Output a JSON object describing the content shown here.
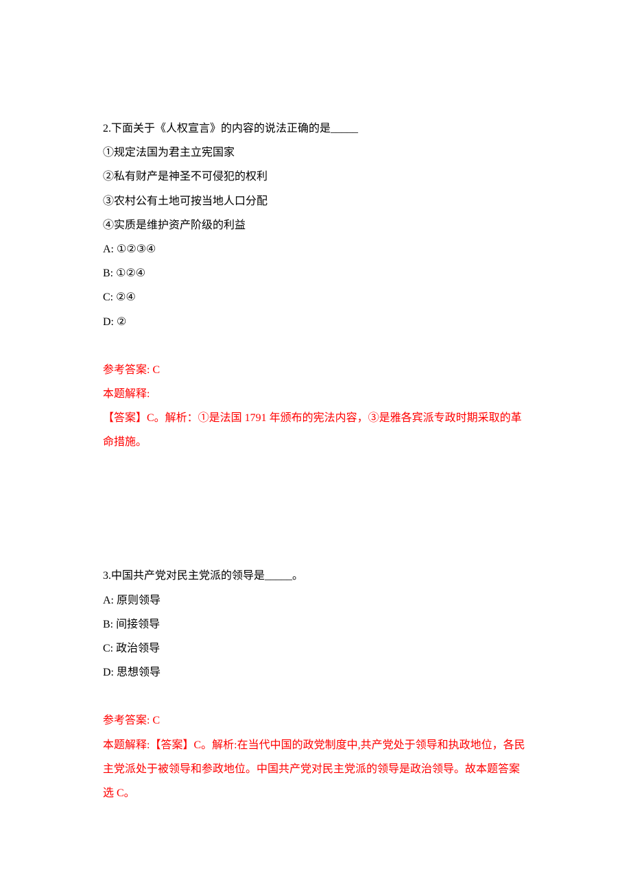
{
  "colors": {
    "text_black": "#000000",
    "text_red": "#ff0000",
    "background": "#ffffff"
  },
  "typography": {
    "font_family": "SimSun",
    "font_size": 16,
    "line_height": 2.2
  },
  "questions": [
    {
      "number": "2",
      "stem": "2.下面关于《人权宣言》的内容的说法正确的是_____",
      "options_intro": [
        "①规定法国为君主立宪国家",
        "②私有财产是神圣不可侵犯的权利",
        "③农村公有土地可按当地人口分配",
        "④实质是维护资产阶级的利益"
      ],
      "choices": [
        "A: ①②③④",
        "B: ①②④",
        "C: ②④",
        "D: ②"
      ],
      "answer_label": "参考答案: C",
      "explanation_label": "本题解释:",
      "explanation": "【答案】C。解析：①是法国 1791 年颁布的宪法内容，③是雅各宾派专政时期采取的革命措施。"
    },
    {
      "number": "3",
      "stem": "3.中国共产党对民主党派的领导是_____。",
      "options_intro": [],
      "choices": [
        "A: 原则领导",
        "B: 间接领导",
        "C: 政治领导",
        "D: 思想领导"
      ],
      "answer_label": "参考答案: C",
      "explanation_label": "",
      "explanation": "本题解释:【答案】C。解析:在当代中国的政党制度中,共产党处于领导和执政地位，各民主党派处于被领导和参政地位。中国共产党对民主党派的领导是政治领导。故本题答案选 C。"
    }
  ]
}
